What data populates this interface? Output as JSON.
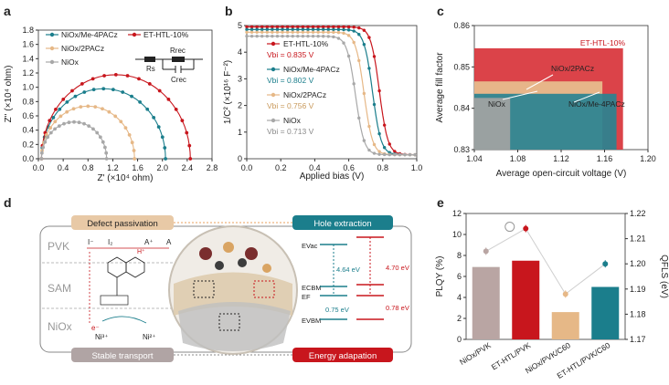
{
  "panel_letters": [
    "a",
    "b",
    "c",
    "d",
    "e"
  ],
  "colors": {
    "et": "#c8161d",
    "me4": "#1b7e8c",
    "pacz2": "#e6b887",
    "niox": "#a8a8a8",
    "nioxbar": "#b9a5a3",
    "grid": "#d8d8d8"
  },
  "chart_data": [
    {
      "id": "a",
      "type": "scatter",
      "xlabel": "Z' (×10⁴ ohm)",
      "ylabel": "Z'' (×10⁴ ohm)",
      "xlim": [
        0,
        2.8
      ],
      "ylim": [
        0,
        1.8
      ],
      "xticks": [
        "0.0",
        "0.4",
        "0.8",
        "1.2",
        "1.6",
        "2.0",
        "2.4",
        "2.8"
      ],
      "yticks": [
        "0.0",
        "0.2",
        "0.4",
        "0.6",
        "0.8",
        "1.0",
        "1.2",
        "1.4",
        "1.6",
        "1.8"
      ],
      "circuit_labels": [
        "Rs",
        "Rrec",
        "Crec"
      ],
      "series": [
        {
          "name": "NiOx/Me-4PACz",
          "color_key": "me4",
          "arc_start": 0.05,
          "arc_end": 2.05
        },
        {
          "name": "ET-HTL-10%",
          "color_key": "et",
          "arc_start": 0.05,
          "arc_end": 2.45
        },
        {
          "name": "NiOx/2PACz",
          "color_key": "pacz2",
          "arc_start": 0.05,
          "arc_end": 1.55
        },
        {
          "name": "NiOx",
          "color_key": "niox",
          "arc_start": 0.05,
          "arc_end": 1.1
        }
      ]
    },
    {
      "id": "b",
      "type": "line",
      "xlabel": "Applied bias (V)",
      "ylabel": "1/C² (×10¹⁶ F⁻²)",
      "xlim": [
        0,
        1.0
      ],
      "ylim": [
        0,
        5
      ],
      "xticks": [
        "0.0",
        "0.2",
        "0.4",
        "0.6",
        "0.8",
        "1.0"
      ],
      "yticks": [
        "0",
        "1",
        "2",
        "3",
        "4",
        "5"
      ],
      "series": [
        {
          "name": "ET-HTL-10%",
          "vbi": "Vbi = 0.835 V",
          "color_key": "et",
          "plateau": 4.95,
          "center": 0.78
        },
        {
          "name": "NiOx/Me-4PACz",
          "vbi": "Vbi = 0.802 V",
          "color_key": "me4",
          "plateau": 4.85,
          "center": 0.74
        },
        {
          "name": "NiOx/2PACz",
          "vbi": "Vbi = 0.756 V",
          "color_key": "pacz2",
          "plateau": 4.75,
          "center": 0.69
        },
        {
          "name": "NiOx",
          "vbi": "Vbi = 0.713 V",
          "color_key": "niox",
          "plateau": 4.6,
          "center": 0.64
        }
      ]
    },
    {
      "id": "c",
      "type": "bar",
      "xlabel": "Average open-circuit voltage (V)",
      "ylabel": "Average fill factor",
      "xlim": [
        1.04,
        1.2
      ],
      "ylim": [
        0.83,
        0.86
      ],
      "xticks": [
        "1.04",
        "1.08",
        "1.12",
        "1.16",
        "1.20"
      ],
      "yticks": [
        "0.83",
        "0.84",
        "0.85",
        "0.86"
      ],
      "series": [
        {
          "name": "ET-HTL-10%",
          "voc": 1.177,
          "ff": 0.8545,
          "color_key": "et"
        },
        {
          "name": "NiOx/2PACz",
          "voc": 1.158,
          "ff": 0.8465,
          "color_key": "pacz2"
        },
        {
          "name": "NiOx/Me-4PACz",
          "voc": 1.171,
          "ff": 0.8435,
          "color_key": "me4"
        },
        {
          "name": "NiOx",
          "voc": 1.073,
          "ff": 0.8425,
          "color_key": "niox"
        }
      ]
    },
    {
      "id": "e",
      "type": "bar",
      "ylabel": "PLQY (%)",
      "y2label": "QFLS (eV)",
      "ylim": [
        0,
        12
      ],
      "y2lim": [
        1.17,
        1.22
      ],
      "yticks": [
        "0",
        "2",
        "4",
        "6",
        "8",
        "10",
        "12"
      ],
      "y2ticks": [
        "1.17",
        "1.18",
        "1.19",
        "1.20",
        "1.21",
        "1.22"
      ],
      "categories": [
        "NiOx/PVK",
        "ET-HTL/PVK",
        "NiOx/PVK/C60",
        "ET-HTL/PVK/C60"
      ],
      "plqy": [
        6.9,
        7.5,
        2.6,
        5.0
      ],
      "qfls": [
        1.205,
        1.214,
        1.188,
        1.2
      ],
      "bar_colors": [
        "nioxbar",
        "et",
        "pacz2",
        "me4"
      ]
    }
  ],
  "schematic": {
    "defect_passivation": "Defect passivation",
    "hole_extraction": "Hole extraction",
    "stable_transport": "Stable transport",
    "energy_adaption": "Energy adapation",
    "layers": [
      "PVK",
      "SAM",
      "NiOx"
    ],
    "ions": [
      "I⁻",
      "I₂",
      "A⁺",
      "A",
      "H⁺",
      "e⁻",
      "Ni³⁺",
      "Ni²⁺"
    ],
    "energy_labels": [
      "EVac",
      "ECBM",
      "EF",
      "EVBM"
    ],
    "values": [
      "4.64 eV",
      "4.70 eV",
      "0.75 eV",
      "0.78 eV"
    ]
  }
}
